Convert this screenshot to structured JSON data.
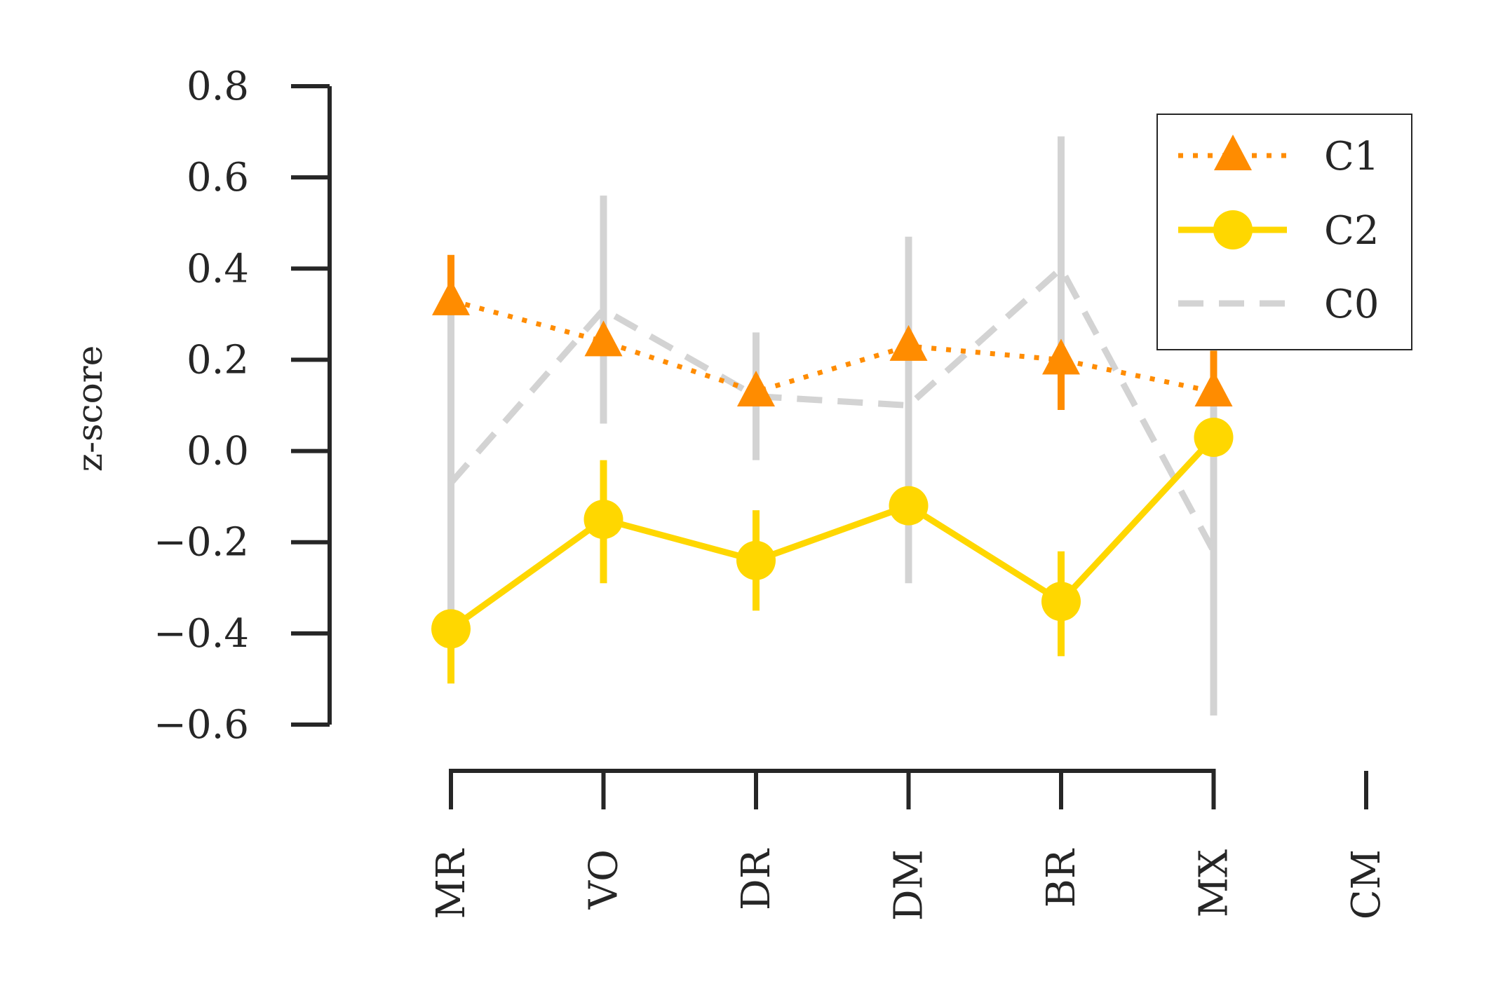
{
  "chart_data": {
    "type": "line",
    "title": "",
    "xlabel": "",
    "ylabel": "z-score",
    "ylim": [
      -0.6,
      0.8
    ],
    "yticks": [
      -0.6,
      -0.4,
      -0.2,
      0.0,
      0.2,
      0.4,
      0.6,
      0.8
    ],
    "ytick_labels": [
      "−0.6",
      "−0.4",
      "−0.2",
      "0.0",
      "0.2",
      "0.4",
      "0.6",
      "0.8"
    ],
    "categories": [
      "MR",
      "VO",
      "DR",
      "DM",
      "BR",
      "MX",
      "CM"
    ],
    "grid": false,
    "legend_position": "top-right",
    "series": [
      {
        "name": "C1",
        "color": "#ff8c00",
        "linestyle": "dotted",
        "marker": "triangle",
        "values": [
          0.33,
          0.24,
          0.13,
          0.23,
          0.2,
          0.13,
          null
        ],
        "err_low": [
          0.3,
          0.24,
          0.13,
          0.23,
          0.09,
          0.13,
          null
        ],
        "err_high": [
          0.43,
          0.24,
          0.13,
          0.23,
          0.2,
          0.22,
          null
        ]
      },
      {
        "name": "C2",
        "color": "#ffd700",
        "linestyle": "solid",
        "marker": "circle",
        "values": [
          -0.39,
          -0.15,
          -0.24,
          -0.12,
          -0.33,
          0.03,
          null
        ],
        "err_low": [
          -0.51,
          -0.29,
          -0.35,
          -0.12,
          -0.45,
          0.03,
          null
        ],
        "err_high": [
          -0.39,
          -0.02,
          -0.13,
          -0.12,
          -0.22,
          0.03,
          null
        ]
      },
      {
        "name": "C0",
        "color": "#d3d3d3",
        "linestyle": "dashed",
        "marker": "none",
        "values": [
          -0.07,
          0.31,
          0.12,
          0.1,
          0.4,
          -0.22,
          null
        ],
        "err_low": [
          -0.4,
          0.06,
          -0.02,
          -0.29,
          0.12,
          -0.58,
          null
        ],
        "err_high": [
          0.3,
          0.56,
          0.26,
          0.47,
          0.69,
          0.13,
          null
        ]
      }
    ]
  },
  "colors": {
    "axis": "#262626",
    "legend_border": "#262626",
    "background": "#ffffff"
  }
}
